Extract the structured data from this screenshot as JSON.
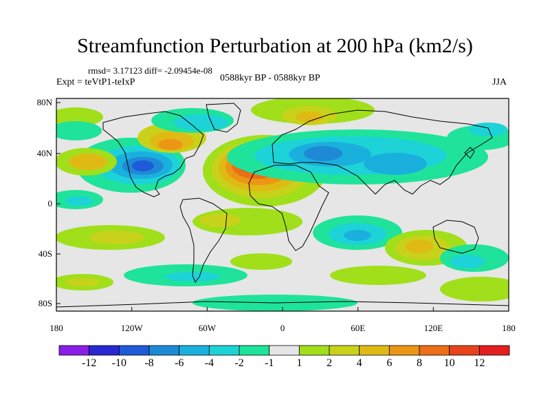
{
  "header": {
    "title": "Streamfunction Perturbation at 200 hPa (km2/s)",
    "stats": "rmsd= 3.17123 diff= -2.09454e-08",
    "experiment": "Expt = teVtP1-teIxP",
    "period": "0588kyr BP - 0588kyr BP",
    "season": "JJA"
  },
  "map": {
    "lat_labels": [
      "80N",
      "40N",
      "0",
      "40S",
      "80S"
    ],
    "lon_labels": [
      "180",
      "120W",
      "60W",
      "0",
      "60E",
      "120E",
      "180"
    ]
  },
  "colorbar": {
    "labels": [
      "-12",
      "-10",
      "-8",
      "-6",
      "-4",
      "-2",
      "-1",
      "1",
      "2",
      "4",
      "6",
      "8",
      "10",
      "12"
    ],
    "colors": [
      "#8a1ee6",
      "#2828d2",
      "#1f5ad8",
      "#1e8ad6",
      "#1ab0de",
      "#1dd3d8",
      "#1fe39a",
      "#e6e6e6",
      "#a0df1a",
      "#c8d21a",
      "#e0ba14",
      "#eb9614",
      "#ec6e16",
      "#e8421c",
      "#e21e1e"
    ]
  },
  "colors": {
    "land_outline": "#000000",
    "background_field": "#e6e6e6"
  }
}
